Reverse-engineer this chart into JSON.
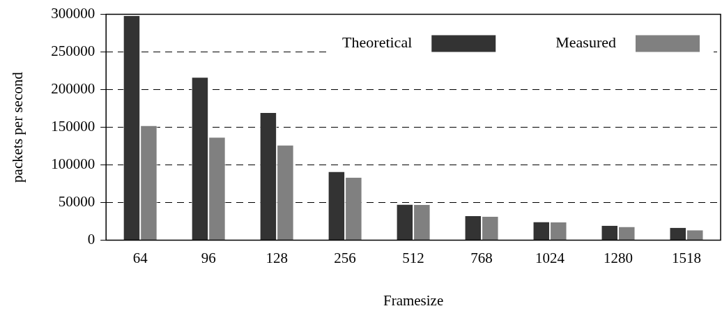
{
  "chart_data": {
    "type": "bar",
    "xlabel": "Framesize",
    "ylabel": "packets per second",
    "categories": [
      "64",
      "96",
      "128",
      "256",
      "512",
      "768",
      "1024",
      "1280",
      "1518"
    ],
    "series": [
      {
        "name": "Theoretical",
        "color": "#333333",
        "values": [
          298000,
          216000,
          169000,
          90800,
          47200,
          32100,
          24200,
          19200,
          16600
        ]
      },
      {
        "name": "Measured",
        "color": "#808080",
        "values": [
          152000,
          136500,
          126000,
          83300,
          46800,
          31400,
          23600,
          17600,
          13200
        ]
      }
    ],
    "ylim": [
      0,
      300000
    ],
    "yticks": [
      0,
      50000,
      100000,
      150000,
      200000,
      250000,
      300000
    ],
    "grid": "y",
    "legend": "top right"
  }
}
